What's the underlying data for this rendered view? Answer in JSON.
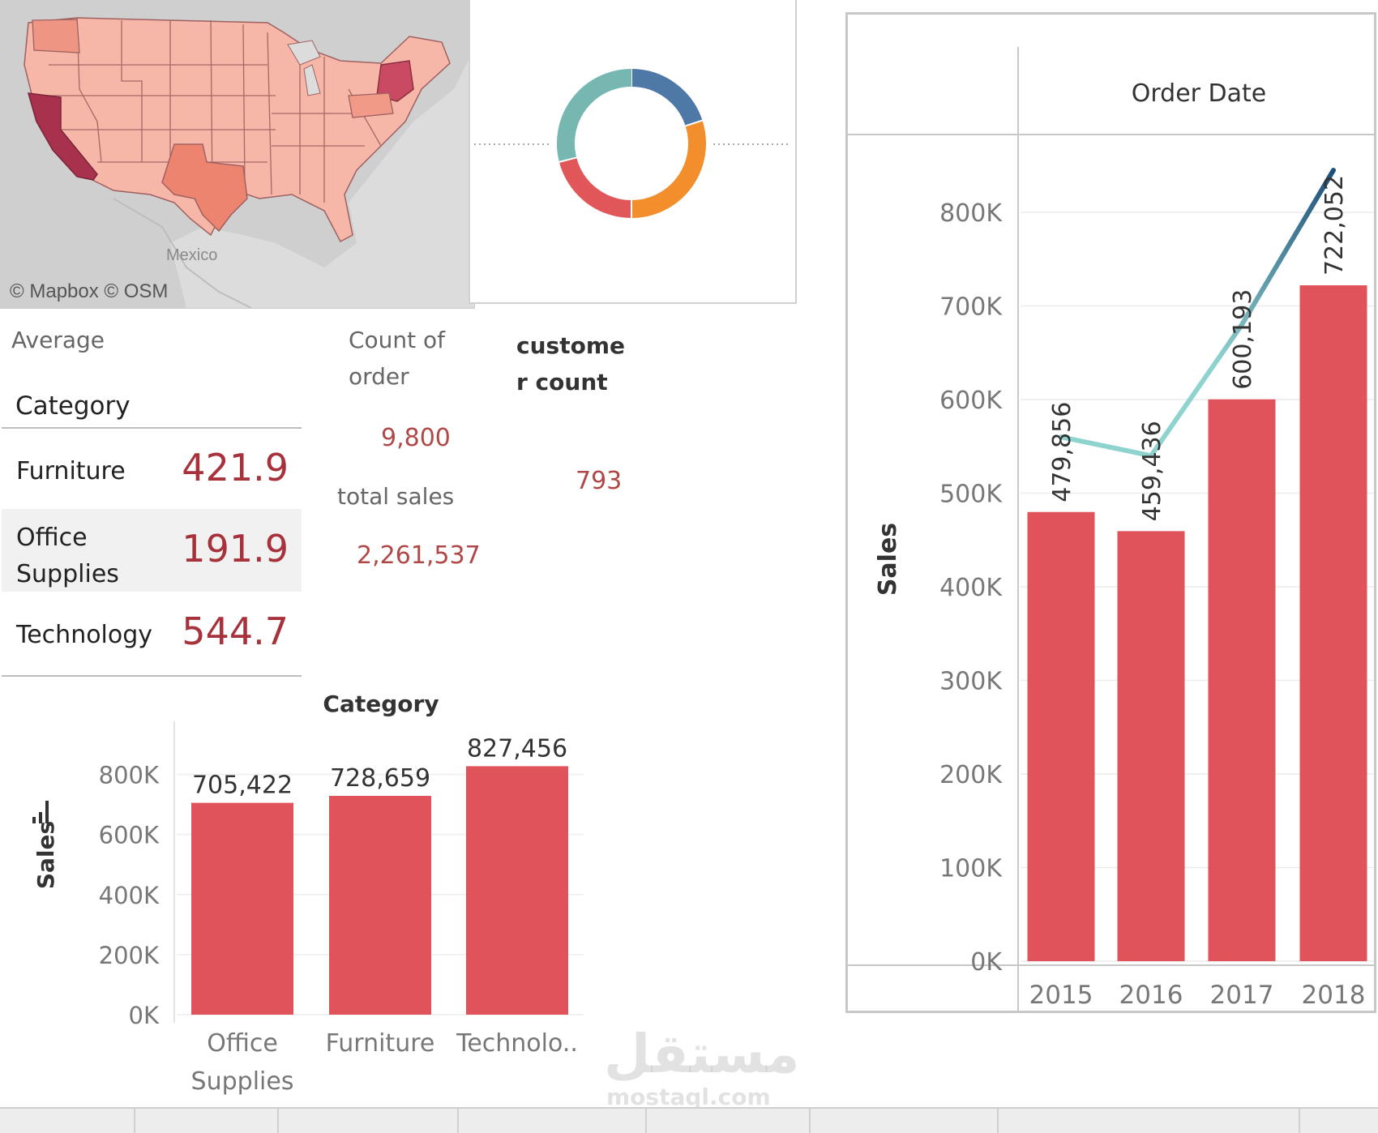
{
  "map": {
    "credit": "© Mapbox © OSM",
    "country_label": "Mexico"
  },
  "kpis": {
    "average_label": "Average",
    "count_orders_label_line1": "Count of",
    "count_orders_label_line2": "order",
    "count_orders_value": "9,800",
    "customer_count_label_line1": "custome",
    "customer_count_label_line2": "r count",
    "customer_count_value": "793",
    "total_sales_label": "total sales",
    "total_sales_value": "2,261,537"
  },
  "category_table": {
    "header": "Category",
    "rows": [
      {
        "name_line1": "Furniture",
        "name_line2": "",
        "value": "421.9"
      },
      {
        "name_line1": "Office",
        "name_line2": "Supplies",
        "value": "191.9"
      },
      {
        "name_line1": "Technology",
        "name_line2": "",
        "value": "544.7"
      }
    ]
  },
  "watermark": {
    "arabic": "مستقل",
    "latin": "mostaql.com"
  },
  "colors": {
    "bar": "#e0535a",
    "value_text": "#b04848",
    "donut": [
      "#4e79a7",
      "#f28e2b",
      "#e15759",
      "#76b7b2"
    ],
    "line_start": "#8fd3cf",
    "line_end": "#1f4e79"
  },
  "chart_data": [
    {
      "type": "pie",
      "donut": true,
      "slices": [
        {
          "value": 20,
          "color": "#4e79a7"
        },
        {
          "value": 30,
          "color": "#f28e2b"
        },
        {
          "value": 21,
          "color": "#e15759"
        },
        {
          "value": 29,
          "color": "#76b7b2"
        }
      ]
    },
    {
      "type": "bar",
      "title": "Category",
      "ylabel": "Sales",
      "categories": [
        "Office Supplies",
        "Furniture",
        "Technolo.."
      ],
      "category_lines": [
        [
          "Office",
          "Supplies"
        ],
        [
          "Furniture"
        ],
        [
          "Technolo.."
        ]
      ],
      "values": [
        705422,
        728659,
        827456
      ],
      "value_labels": [
        "705,422",
        "728,659",
        "827,456"
      ],
      "ylim": [
        0,
        950000
      ],
      "yticks": [
        0,
        200000,
        400000,
        600000,
        800000
      ],
      "ytick_labels": [
        "0K",
        "200K",
        "400K",
        "600K",
        "800K"
      ],
      "grid": true
    },
    {
      "type": "bar",
      "title": "Order Date",
      "ylabel": "Sales",
      "categories": [
        "2015",
        "2016",
        "2017",
        "2018"
      ],
      "values": [
        479856,
        459436,
        600193,
        722052
      ],
      "value_labels": [
        "479,856",
        "459,436",
        "600,193",
        "722,052"
      ],
      "line_series": {
        "values": [
          560000,
          540000,
          680000,
          845000
        ]
      },
      "ylim": [
        0,
        870000
      ],
      "yticks": [
        0,
        100000,
        200000,
        300000,
        400000,
        500000,
        600000,
        700000,
        800000
      ],
      "ytick_labels": [
        "0K",
        "100K",
        "200K",
        "300K",
        "400K",
        "500K",
        "600K",
        "700K",
        "800K"
      ],
      "grid": true
    }
  ]
}
